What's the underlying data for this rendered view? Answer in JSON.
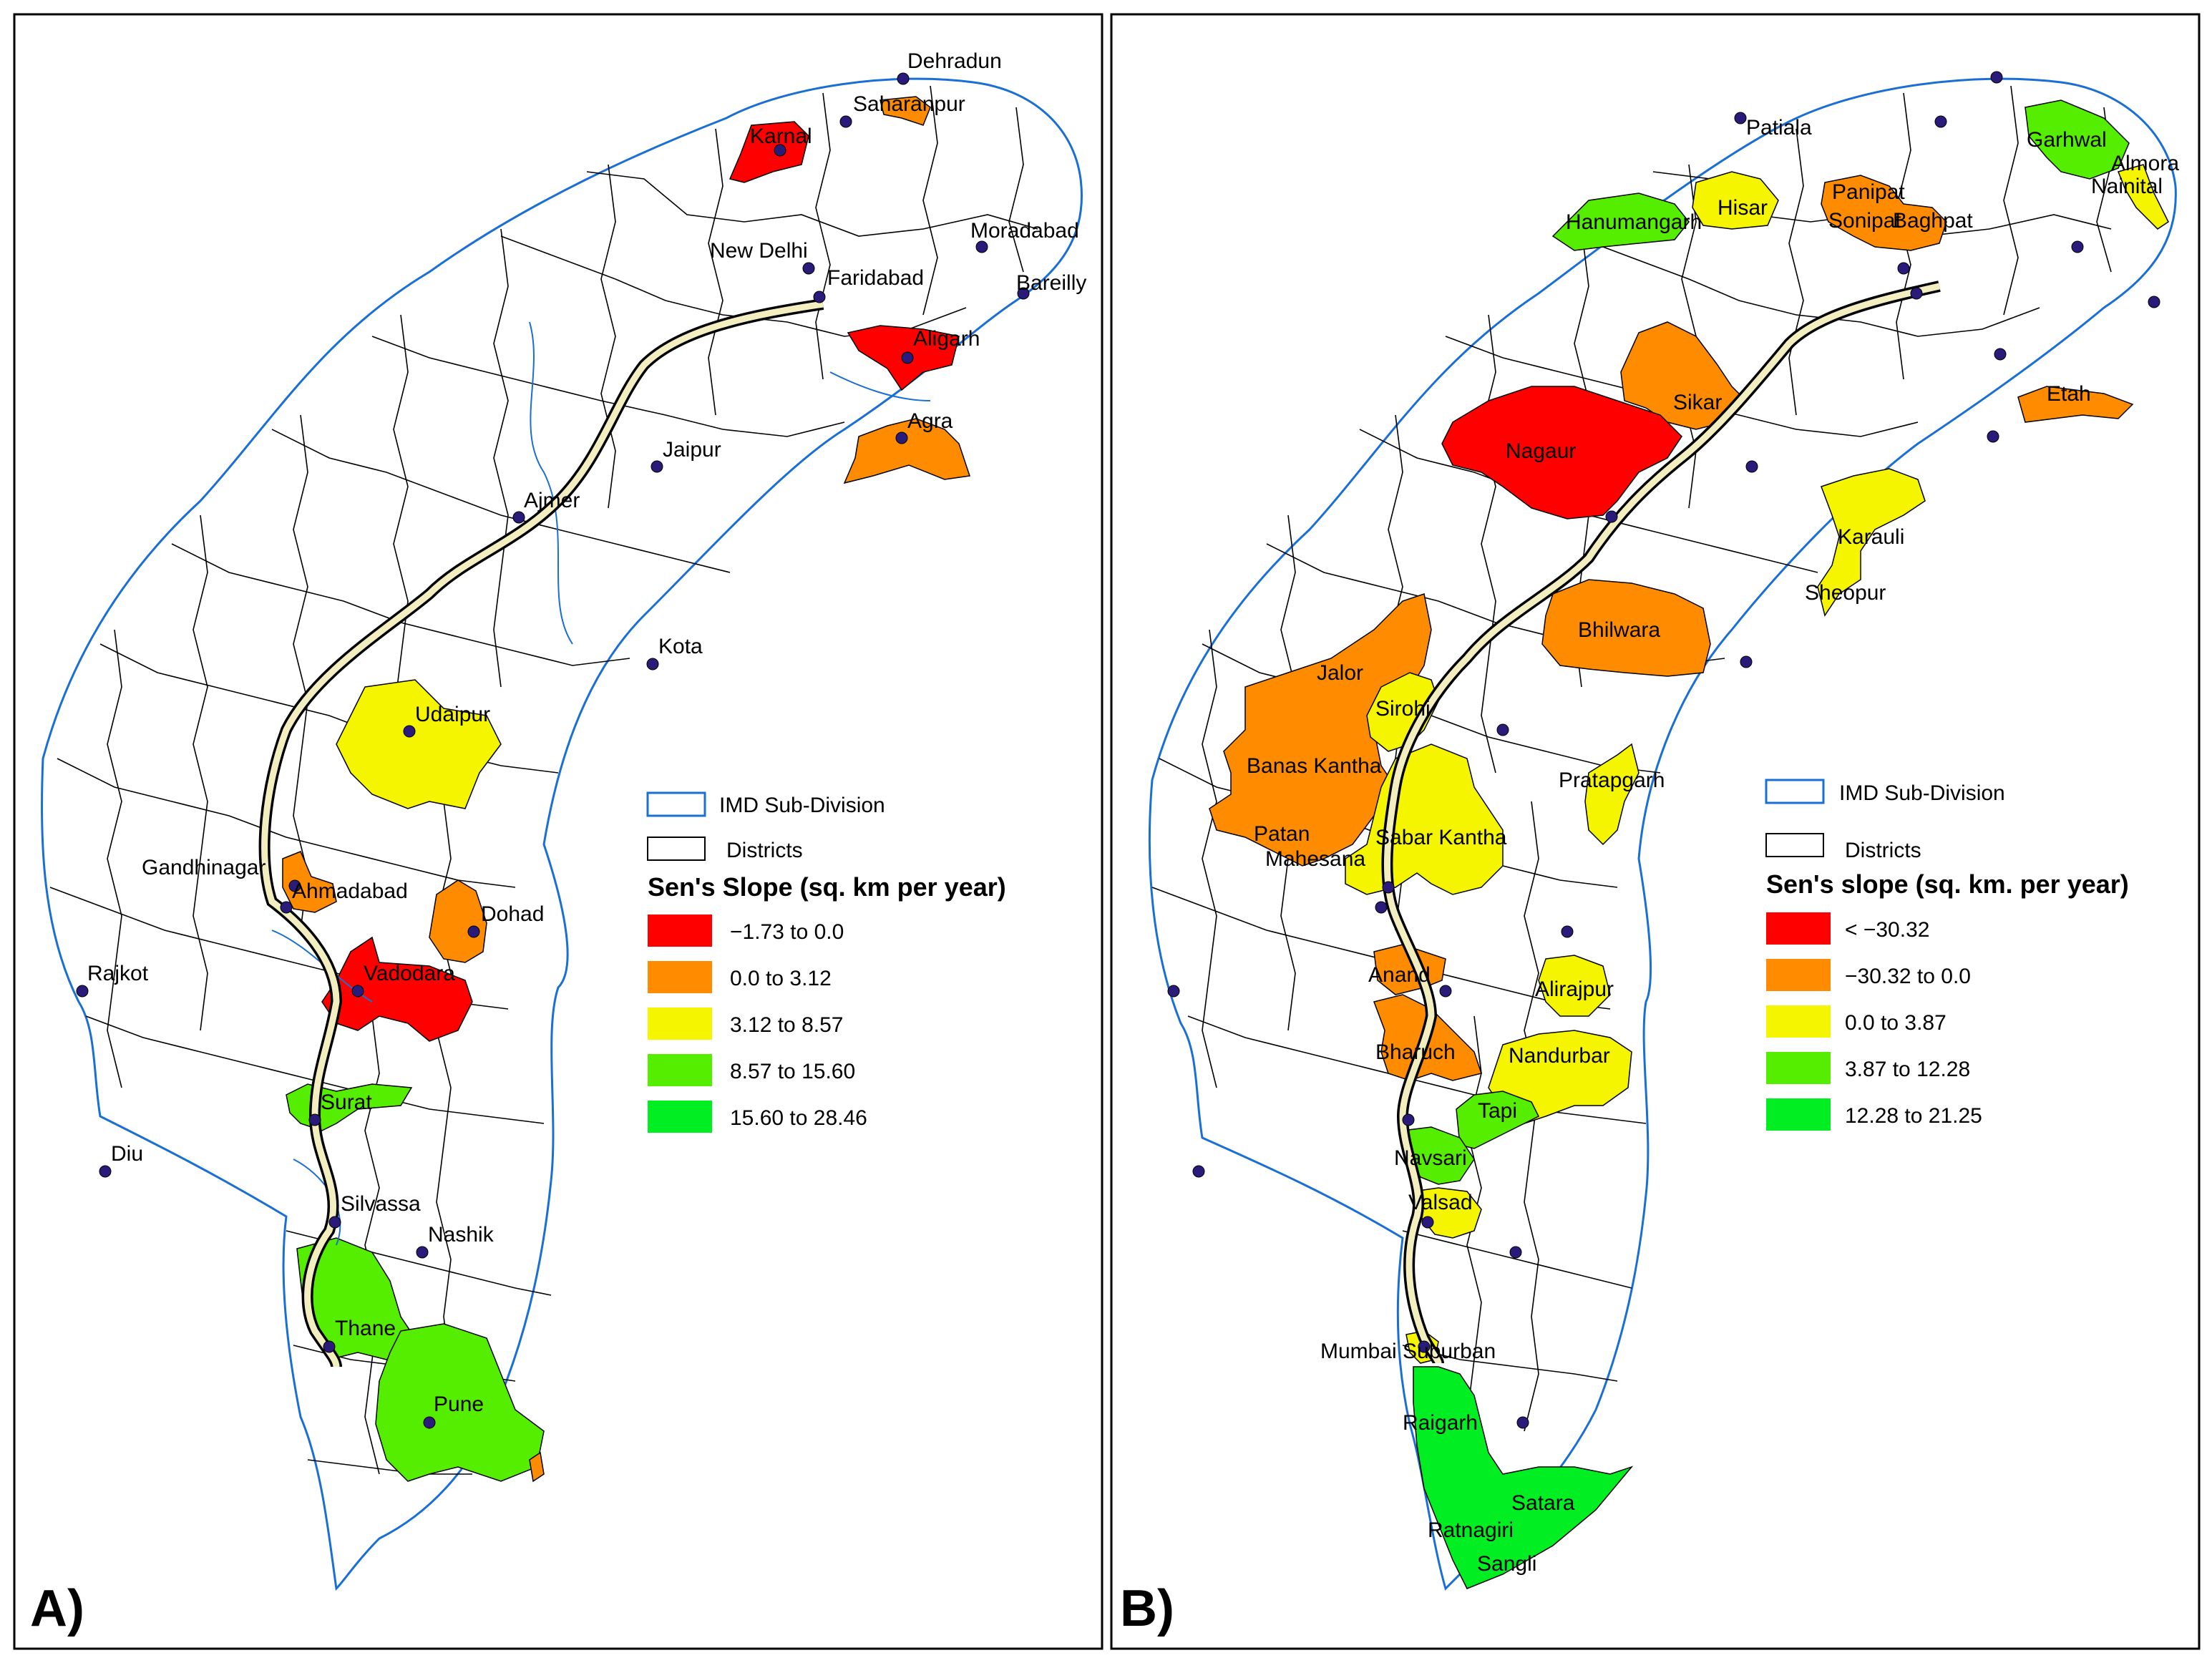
{
  "colors": {
    "class1": "#ff0000",
    "class2": "#ff8c00",
    "class3": "#f5f500",
    "class4": "#55ee00",
    "class5": "#00ee22",
    "imd_border": "#1a6fd6",
    "district_border": "#000000",
    "highway_fill": "#f2eec0"
  },
  "panel_a": {
    "panel_label": "A)",
    "legend": {
      "imd_label": "IMD Sub-Division",
      "districts_label": "Districts",
      "title": "Sen's Slope (sq. km per year)",
      "classes": [
        "−1.73 to 0.0",
        "0.0 to 3.12",
        "3.12 to 8.57",
        "8.57 to 15.60",
        "15.60 to 28.46"
      ]
    },
    "cities": {
      "dehradun": "Dehradun",
      "saharanpur": "Saharanpur",
      "karnal": "Karnal",
      "moradabad": "Moradabad",
      "new_delhi": "New Delhi",
      "faridabad": "Faridabad",
      "bareilly": "Bareilly",
      "aligarh": "Aligarh",
      "agra": "Agra",
      "jaipur": "Jaipur",
      "ajmer": "Ajmer",
      "kota": "Kota",
      "udaipur": "Udaipur",
      "gandhinagar": "Gandhinagar",
      "ahmadabad": "Ahmadabad",
      "dohad": "Dohad",
      "rajkot": "Rajkot",
      "vadodara": "Vadodara",
      "surat": "Surat",
      "diu": "Diu",
      "silvassa": "Silvassa",
      "nashik": "Nashik",
      "thane": "Thane",
      "pune": "Pune"
    }
  },
  "panel_b": {
    "panel_label": "B)",
    "legend": {
      "imd_label": "IMD Sub-Division",
      "districts_label": "Districts",
      "title": "Sen's slope (sq. km. per year)",
      "classes": [
        "< −30.32",
        "−30.32 to 0.0",
        "0.0 to 3.87",
        "3.87 to 12.28",
        "12.28 to 21.25"
      ]
    },
    "districts": {
      "patiala": "Patiala",
      "garhwal": "Garhwal",
      "almora": "Almora",
      "nainital": "Nainital",
      "panipat": "Panipat",
      "hisar": "Hisar",
      "hanumangarh": "Hanumangarh",
      "sonipat": "Sonipat",
      "baghpat": "Baghpat",
      "sikar": "Sikar",
      "etah": "Etah",
      "nagaur": "Nagaur",
      "karauli": "Karauli",
      "sheopur": "Sheopur",
      "bhilwara": "Bhilwara",
      "jalor": "Jalor",
      "sirohi": "Sirohi",
      "banas_kantha": "Banas Kantha",
      "pratapgarh": "Pratapgarh",
      "patan": "Patan",
      "mahesana": "Mahesana",
      "sabar_kantha": "Sabar Kantha",
      "anand": "Anand",
      "alirajpur": "Alirajpur",
      "bharuch": "Bharuch",
      "nandurbar": "Nandurbar",
      "tapi": "Tapi",
      "navsari": "Navsari",
      "valsad": "Valsad",
      "mumbai_suburban": "Mumbai Suburban",
      "raigarh": "Raigarh",
      "satara": "Satara",
      "ratnagiri": "Ratnagiri",
      "sangli": "Sangli"
    }
  }
}
